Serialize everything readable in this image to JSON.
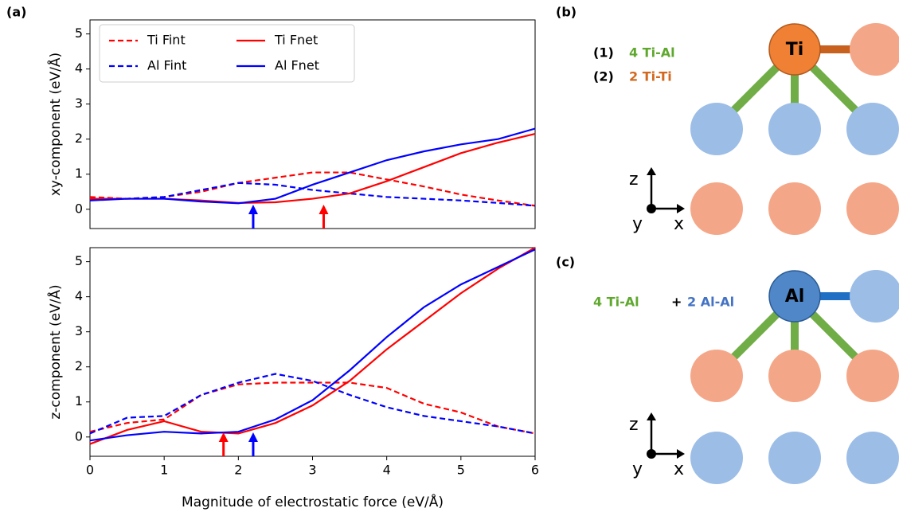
{
  "panel_labels": [
    "(a)",
    "(b)",
    "(c)"
  ],
  "chart_data": [
    {
      "type": "line",
      "ylabel": "xy-component (eV/Å)",
      "x": [
        0,
        0.5,
        1,
        1.5,
        2,
        2.5,
        3,
        3.5,
        4,
        4.5,
        5,
        5.5,
        6
      ],
      "xlim": [
        0,
        6
      ],
      "ylim": [
        -0.55,
        5.4
      ],
      "yticks": [
        0,
        1,
        2,
        3,
        4,
        5
      ],
      "legend": "upper left",
      "series": [
        {
          "name": "Ti Fint",
          "color": "#ff0000",
          "dash": true,
          "values": [
            0.35,
            0.3,
            0.35,
            0.5,
            0.75,
            0.9,
            1.05,
            1.05,
            0.85,
            0.65,
            0.42,
            0.25,
            0.1
          ]
        },
        {
          "name": "Al Fint",
          "color": "#0000ff",
          "dash": true,
          "values": [
            0.3,
            0.3,
            0.35,
            0.55,
            0.75,
            0.7,
            0.55,
            0.45,
            0.35,
            0.3,
            0.25,
            0.18,
            0.1
          ]
        },
        {
          "name": "Ti Fnet",
          "color": "#ff0000",
          "dash": false,
          "values": [
            0.3,
            0.3,
            0.3,
            0.25,
            0.18,
            0.2,
            0.3,
            0.45,
            0.8,
            1.2,
            1.6,
            1.9,
            2.15
          ]
        },
        {
          "name": "Al Fnet",
          "color": "#0000ff",
          "dash": false,
          "values": [
            0.25,
            0.3,
            0.3,
            0.22,
            0.17,
            0.3,
            0.7,
            1.05,
            1.4,
            1.65,
            1.85,
            2.0,
            2.3
          ]
        }
      ],
      "markers": [
        {
          "x": 2.2,
          "color": "#0000ff"
        },
        {
          "x": 3.15,
          "color": "#ff0000"
        }
      ]
    },
    {
      "type": "line",
      "ylabel": "z-component (eV/Å)",
      "xlabel": "Magnitude of electrostatic force (eV/Å)",
      "x": [
        0,
        0.5,
        1,
        1.5,
        2,
        2.5,
        3,
        3.5,
        4,
        4.5,
        5,
        5.5,
        6
      ],
      "xlim": [
        0,
        6
      ],
      "xticks": [
        0,
        1,
        2,
        3,
        4,
        5,
        6
      ],
      "ylim": [
        -0.55,
        5.4
      ],
      "yticks": [
        0,
        1,
        2,
        3,
        4,
        5
      ],
      "series": [
        {
          "name": "Ti Fint",
          "color": "#ff0000",
          "dash": true,
          "values": [
            0.15,
            0.4,
            0.5,
            1.2,
            1.5,
            1.55,
            1.55,
            1.55,
            1.4,
            0.95,
            0.7,
            0.3,
            0.1
          ]
        },
        {
          "name": "Al Fint",
          "color": "#0000ff",
          "dash": true,
          "values": [
            0.1,
            0.55,
            0.6,
            1.2,
            1.55,
            1.8,
            1.6,
            1.2,
            0.85,
            0.6,
            0.45,
            0.3,
            0.1
          ]
        },
        {
          "name": "Ti Fnet",
          "color": "#ff0000",
          "dash": false,
          "values": [
            -0.2,
            0.2,
            0.45,
            0.15,
            0.1,
            0.4,
            0.9,
            1.6,
            2.5,
            3.3,
            4.1,
            4.8,
            5.4
          ]
        },
        {
          "name": "Al Fnet",
          "color": "#0000ff",
          "dash": false,
          "values": [
            -0.1,
            0.05,
            0.15,
            0.1,
            0.15,
            0.5,
            1.05,
            1.9,
            2.85,
            3.7,
            4.35,
            4.85,
            5.35
          ]
        }
      ],
      "markers": [
        {
          "x": 1.8,
          "color": "#ff0000"
        },
        {
          "x": 2.2,
          "color": "#0000ff"
        }
      ]
    }
  ],
  "diagram_b": {
    "line1_index": "(1)",
    "line1": "4 Ti-Al",
    "line2_index": "(2)",
    "line2": "2 Ti-Ti",
    "atom": "Ti",
    "axes": [
      "z",
      "y",
      "x"
    ]
  },
  "diagram_c": {
    "part1": "4 Ti-Al",
    "plus": "+",
    "part2": "2 Al-Al",
    "atom": "Al",
    "axes": [
      "z",
      "y",
      "x"
    ]
  }
}
